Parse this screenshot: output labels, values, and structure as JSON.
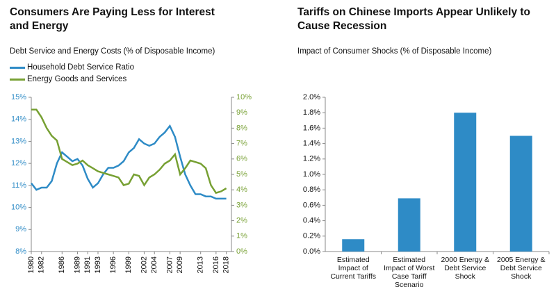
{
  "chart_data": [
    {
      "type": "line",
      "title": "Consumers Are Paying Less for Interest and Energy",
      "subtitle": "Debt Service and Energy Costs (% of Disposable Income)",
      "x": [
        1980,
        1981,
        1982,
        1983,
        1984,
        1985,
        1986,
        1987,
        1988,
        1989,
        1990,
        1991,
        1992,
        1993,
        1994,
        1995,
        1996,
        1997,
        1998,
        1999,
        2000,
        2001,
        2002,
        2003,
        2004,
        2005,
        2006,
        2007,
        2008,
        2009,
        2010,
        2011,
        2012,
        2013,
        2014,
        2015,
        2016,
        2017,
        2018
      ],
      "series": [
        {
          "name": "Household Debt Service Ratio",
          "color": "#2e8bc6",
          "values": [
            11.1,
            10.8,
            10.9,
            10.9,
            11.2,
            12.0,
            12.5,
            12.3,
            12.1,
            12.2,
            11.9,
            11.3,
            10.9,
            11.1,
            11.5,
            11.8,
            11.8,
            11.9,
            12.1,
            12.5,
            12.7,
            13.1,
            12.9,
            12.8,
            12.9,
            13.2,
            13.4,
            13.7,
            13.2,
            12.3,
            11.5,
            11.0,
            10.6,
            10.6,
            10.5,
            10.5,
            10.4,
            10.4,
            10.4
          ]
        },
        {
          "name": "Energy Goods and Services",
          "color": "#77a033",
          "axis": "y2",
          "values": [
            9.2,
            9.2,
            8.7,
            8.0,
            7.5,
            7.2,
            6.0,
            5.8,
            5.6,
            5.7,
            5.9,
            5.6,
            5.4,
            5.2,
            5.1,
            5.0,
            4.9,
            4.8,
            4.3,
            4.4,
            5.0,
            4.9,
            4.3,
            4.8,
            5.0,
            5.3,
            5.7,
            5.9,
            6.3,
            5.0,
            5.4,
            5.9,
            5.8,
            5.7,
            5.4,
            4.3,
            3.8,
            3.9,
            4.1
          ]
        }
      ],
      "xlim": [
        1980,
        2019
      ],
      "xticks": [
        1980,
        1982,
        1986,
        1989,
        1991,
        1993,
        1996,
        1999,
        2002,
        2004,
        2007,
        2009,
        2013,
        2016,
        2018
      ],
      "ylim": [
        8,
        15
      ],
      "yticks": [
        {
          "value": 8,
          "label": "8%"
        },
        {
          "value": 9,
          "label": "9%"
        },
        {
          "value": 10,
          "label": "10%"
        },
        {
          "value": 11,
          "label": "11%"
        },
        {
          "value": 12,
          "label": "12%"
        },
        {
          "value": 13,
          "label": "13%"
        },
        {
          "value": 14,
          "label": "14%"
        },
        {
          "value": 15,
          "label": "15%"
        }
      ],
      "y2lim": [
        0,
        10
      ],
      "y2ticks": [
        {
          "value": 0,
          "label": "0%"
        },
        {
          "value": 1,
          "label": "1%"
        },
        {
          "value": 2,
          "label": "2%"
        },
        {
          "value": 3,
          "label": "3%"
        },
        {
          "value": 4,
          "label": "4%"
        },
        {
          "value": 5,
          "label": "5%"
        },
        {
          "value": 6,
          "label": "6%"
        },
        {
          "value": 7,
          "label": "7%"
        },
        {
          "value": 8,
          "label": "8%"
        },
        {
          "value": 9,
          "label": "9%"
        },
        {
          "value": 10,
          "label": "10%"
        }
      ]
    },
    {
      "type": "bar",
      "title": "Tariffs on Chinese Imports Appear Unlikely to Cause Recession",
      "subtitle": "Impact of Consumer Shocks (% of Disposable Income)",
      "categories": [
        "Estimated Impact of Current Tariffs",
        "Estimated Impact of Worst Case Tariff Scenario",
        "2000 Energy & Debt Service Shock",
        "2005 Energy & Debt Service Shock"
      ],
      "values": [
        0.16,
        0.69,
        1.8,
        1.5
      ],
      "color": "#2e8bc6",
      "ylim": [
        0,
        2
      ],
      "yticks": [
        {
          "value": 0,
          "label": "0.0%"
        },
        {
          "value": 0.2,
          "label": "0.2%"
        },
        {
          "value": 0.4,
          "label": "0.4%"
        },
        {
          "value": 0.6,
          "label": "0.6%"
        },
        {
          "value": 0.8,
          "label": "0.8%"
        },
        {
          "value": 1,
          "label": "1.0%"
        },
        {
          "value": 1.2,
          "label": "1.2%"
        },
        {
          "value": 1.4,
          "label": "1.4%"
        },
        {
          "value": 1.6,
          "label": "1.6%"
        },
        {
          "value": 1.8,
          "label": "1.8%"
        },
        {
          "value": 2,
          "label": "2.0%"
        }
      ]
    }
  ]
}
